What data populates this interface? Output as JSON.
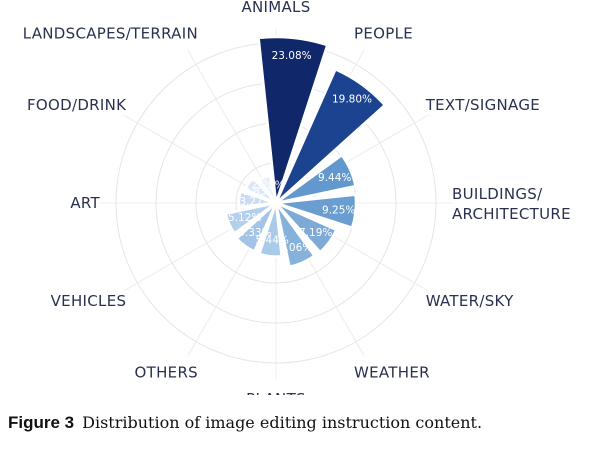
{
  "chart_data": {
    "type": "polar-bar",
    "title": "",
    "categories": [
      "ANIMALS",
      "PEOPLE",
      "TEXT/SIGNAGE",
      "BUILDINGS/\nARCHITECTURE",
      "WATER/SKY",
      "WEATHER",
      "PLANTS",
      "OTHERS",
      "VEHICLES",
      "ART",
      "FOOD/DRINK",
      "LANDSCAPES/TERRAIN"
    ],
    "values": [
      23.08,
      19.8,
      9.44,
      9.25,
      7.19,
      7.06,
      5.44,
      5.33,
      5.12,
      3.27,
      2.83,
      2.2
    ],
    "value_labels": [
      "23.08%",
      "19.80%",
      "9.44%",
      "9.25%",
      "7.19%",
      "7.06%",
      "5.44%",
      "5.33%",
      "5.12%",
      "3.27%",
      "2.83%",
      "2.20%"
    ],
    "colors": [
      "#10286a",
      "#1c4390",
      "#6298ce",
      "#6a9ed0",
      "#7daad6",
      "#86b1da",
      "#aacaea",
      "#a3c4e6",
      "#b4d0ec",
      "#c9ddf1",
      "#dbe7f5",
      "#e7f0f9"
    ],
    "grid": true
  },
  "caption": {
    "figure_label": "Figure 3",
    "text": "Distribution of image editing instruction content."
  }
}
